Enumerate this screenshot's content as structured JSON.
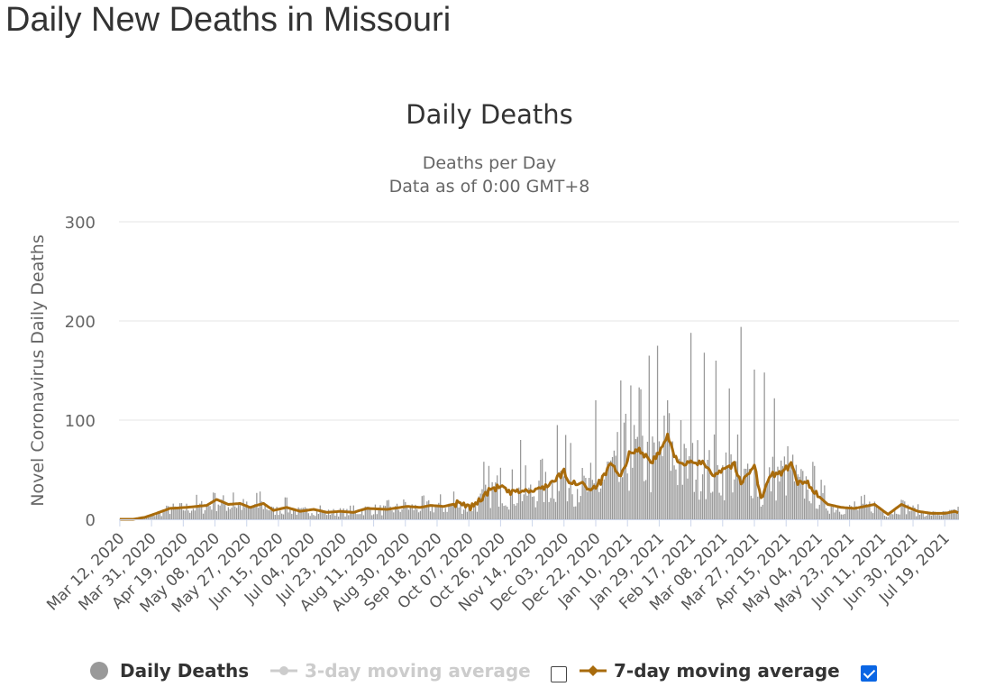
{
  "page": {
    "title": "Daily New Deaths in Missouri"
  },
  "chart_data": {
    "type": "bar",
    "title": "Daily Deaths",
    "subtitle_lines": [
      "Deaths per Day",
      "Data as of 0:00 GMT+8"
    ],
    "ylabel": "Novel Coronavirus Daily Deaths",
    "xlabel": "",
    "ylim": [
      0,
      300
    ],
    "yticks": [
      0,
      100,
      200,
      300
    ],
    "grid": true,
    "legend_position": "bottom",
    "start_date": "2020-03-12",
    "num_days": 503,
    "x_tick_labels": [
      "Mar 12, 2020",
      "Mar 31, 2020",
      "Apr 19, 2020",
      "May 08, 2020",
      "May 27, 2020",
      "Jun 15, 2020",
      "Jul 04, 2020",
      "Jul 23, 2020",
      "Aug 11, 2020",
      "Aug 30, 2020",
      "Sep 18, 2020",
      "Oct 07, 2020",
      "Oct 26, 2020",
      "Nov 14, 2020",
      "Dec 03, 2020",
      "Dec 22, 2020",
      "Jan 10, 2021",
      "Jan 29, 2021",
      "Feb 17, 2021",
      "Mar 08, 2021",
      "Mar 27, 2021",
      "Apr 15, 2021",
      "May 04, 2021",
      "May 23, 2021",
      "Jun 11, 2021",
      "Jun 30, 2021",
      "Jul 19, 2021"
    ],
    "colors": {
      "bars": "#999999",
      "avg7": "#a86b0c",
      "grid": "#e6e6e6"
    },
    "series": [
      {
        "name": "Daily Deaths",
        "kind": "bar",
        "visible": true,
        "checkbox": false
      },
      {
        "name": "3-day moving average",
        "kind": "line",
        "visible": false,
        "checkbox": false
      },
      {
        "name": "7-day moving average",
        "kind": "line",
        "visible": true,
        "checkbox": true
      }
    ],
    "seven_day_avg_keypoints": [
      [
        0,
        0
      ],
      [
        8,
        0
      ],
      [
        15,
        2
      ],
      [
        22,
        6
      ],
      [
        30,
        11
      ],
      [
        40,
        12
      ],
      [
        52,
        14
      ],
      [
        58,
        20
      ],
      [
        65,
        15
      ],
      [
        72,
        16
      ],
      [
        78,
        12
      ],
      [
        86,
        16
      ],
      [
        92,
        9
      ],
      [
        100,
        12
      ],
      [
        108,
        8
      ],
      [
        116,
        10
      ],
      [
        124,
        7
      ],
      [
        132,
        8
      ],
      [
        140,
        7
      ],
      [
        148,
        11
      ],
      [
        160,
        10
      ],
      [
        172,
        13
      ],
      [
        180,
        12
      ],
      [
        186,
        14
      ],
      [
        194,
        13
      ],
      [
        202,
        16
      ],
      [
        210,
        12
      ],
      [
        216,
        20
      ],
      [
        222,
        30
      ],
      [
        228,
        33
      ],
      [
        234,
        26
      ],
      [
        240,
        29
      ],
      [
        248,
        28
      ],
      [
        254,
        33
      ],
      [
        260,
        38
      ],
      [
        266,
        48
      ],
      [
        270,
        35
      ],
      [
        276,
        38
      ],
      [
        282,
        30
      ],
      [
        288,
        38
      ],
      [
        294,
        55
      ],
      [
        300,
        42
      ],
      [
        306,
        70
      ],
      [
        312,
        69
      ],
      [
        318,
        58
      ],
      [
        322,
        64
      ],
      [
        328,
        84
      ],
      [
        332,
        64
      ],
      [
        338,
        55
      ],
      [
        344,
        57
      ],
      [
        350,
        56
      ],
      [
        356,
        45
      ],
      [
        362,
        52
      ],
      [
        368,
        55
      ],
      [
        372,
        35
      ],
      [
        376,
        47
      ],
      [
        380,
        55
      ],
      [
        384,
        20
      ],
      [
        390,
        45
      ],
      [
        396,
        47
      ],
      [
        402,
        55
      ],
      [
        406,
        36
      ],
      [
        412,
        37
      ],
      [
        418,
        24
      ],
      [
        424,
        15
      ],
      [
        432,
        12
      ],
      [
        440,
        11
      ],
      [
        446,
        13
      ],
      [
        452,
        15
      ],
      [
        456,
        10
      ],
      [
        460,
        5
      ],
      [
        464,
        10
      ],
      [
        468,
        15
      ],
      [
        472,
        12
      ],
      [
        478,
        8
      ],
      [
        486,
        6
      ],
      [
        494,
        6
      ],
      [
        500,
        8
      ],
      [
        503,
        6
      ]
    ],
    "daily_peaks": [
      [
        56,
        27
      ],
      [
        68,
        27
      ],
      [
        84,
        28
      ],
      [
        100,
        22
      ],
      [
        120,
        14
      ],
      [
        140,
        14
      ],
      [
        170,
        20
      ],
      [
        200,
        28
      ],
      [
        218,
        58
      ],
      [
        228,
        52
      ],
      [
        240,
        80
      ],
      [
        252,
        60
      ],
      [
        262,
        95
      ],
      [
        270,
        77
      ],
      [
        285,
        120
      ],
      [
        300,
        140
      ],
      [
        306,
        135
      ],
      [
        311,
        133
      ],
      [
        317,
        165
      ],
      [
        322,
        175
      ],
      [
        328,
        120
      ],
      [
        336,
        100
      ],
      [
        342,
        188
      ],
      [
        350,
        168
      ],
      [
        357,
        160
      ],
      [
        365,
        132
      ],
      [
        372,
        194
      ],
      [
        380,
        151
      ],
      [
        386,
        148
      ],
      [
        392,
        122
      ],
      [
        402,
        56
      ],
      [
        412,
        30
      ],
      [
        440,
        18
      ],
      [
        470,
        18
      ],
      [
        500,
        10
      ]
    ]
  }
}
